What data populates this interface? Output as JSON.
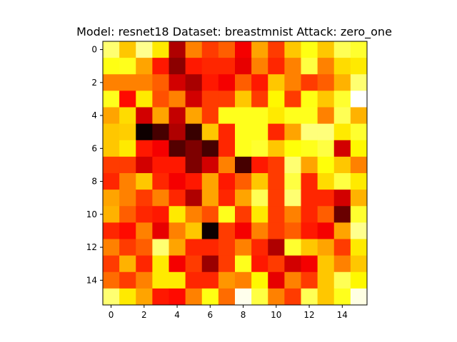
{
  "chart_data": {
    "type": "heatmap",
    "title": "Model: resnet18 Dataset: breastmnist Attack: zero_one",
    "xlabel": "",
    "ylabel": "",
    "colormap": "hot",
    "value_range": [
      0,
      1
    ],
    "xlim": [
      -0.5,
      15.5
    ],
    "ylim": [
      15.5,
      -0.5
    ],
    "x_ticks": [
      0,
      2,
      4,
      6,
      8,
      10,
      12,
      14
    ],
    "y_ticks": [
      0,
      2,
      4,
      6,
      8,
      10,
      12,
      14
    ],
    "grid": false,
    "values": [
      [
        0.85,
        0.65,
        0.88,
        0.7,
        0.25,
        0.55,
        0.45,
        0.5,
        0.35,
        0.6,
        0.45,
        0.65,
        0.75,
        0.65,
        0.82,
        0.78
      ],
      [
        0.75,
        0.76,
        0.6,
        0.4,
        0.2,
        0.4,
        0.42,
        0.42,
        0.33,
        0.55,
        0.42,
        0.55,
        0.8,
        0.55,
        0.68,
        0.7
      ],
      [
        0.55,
        0.55,
        0.55,
        0.5,
        0.3,
        0.24,
        0.4,
        0.35,
        0.5,
        0.4,
        0.65,
        0.55,
        0.45,
        0.5,
        0.62,
        0.85
      ],
      [
        0.76,
        0.38,
        0.7,
        0.48,
        0.55,
        0.3,
        0.45,
        0.45,
        0.65,
        0.45,
        0.72,
        0.45,
        0.75,
        0.65,
        0.78,
        1.0
      ],
      [
        0.6,
        0.68,
        0.3,
        0.6,
        0.28,
        0.6,
        0.45,
        0.76,
        0.76,
        0.76,
        0.7,
        0.76,
        0.76,
        0.55,
        0.82,
        0.62
      ],
      [
        0.65,
        0.66,
        0.02,
        0.1,
        0.25,
        0.08,
        0.65,
        0.42,
        0.76,
        0.76,
        0.42,
        0.6,
        0.86,
        0.86,
        0.7,
        0.78
      ],
      [
        0.65,
        0.7,
        0.4,
        0.35,
        0.12,
        0.18,
        0.1,
        0.42,
        0.76,
        0.78,
        0.65,
        0.74,
        0.76,
        0.8,
        0.3,
        0.72
      ],
      [
        0.45,
        0.45,
        0.3,
        0.4,
        0.4,
        0.18,
        0.3,
        0.55,
        0.1,
        0.4,
        0.45,
        0.85,
        0.6,
        0.74,
        0.65,
        0.55
      ],
      [
        0.42,
        0.55,
        0.65,
        0.42,
        0.35,
        0.4,
        0.6,
        0.4,
        0.5,
        0.65,
        0.45,
        0.8,
        0.42,
        0.68,
        0.8,
        0.7
      ],
      [
        0.6,
        0.55,
        0.45,
        0.55,
        0.42,
        0.25,
        0.6,
        0.42,
        0.6,
        0.82,
        0.45,
        0.85,
        0.42,
        0.42,
        0.3,
        0.62
      ],
      [
        0.62,
        0.5,
        0.42,
        0.4,
        0.7,
        0.55,
        0.48,
        0.76,
        0.45,
        0.7,
        0.45,
        0.55,
        0.42,
        0.5,
        0.15,
        0.78
      ],
      [
        0.42,
        0.38,
        0.55,
        0.33,
        0.55,
        0.65,
        0.02,
        0.45,
        0.35,
        0.55,
        0.45,
        0.5,
        0.4,
        0.35,
        0.6,
        0.88
      ],
      [
        0.55,
        0.45,
        0.5,
        0.85,
        0.6,
        0.42,
        0.42,
        0.45,
        0.55,
        0.42,
        0.25,
        0.78,
        0.65,
        0.6,
        0.45,
        0.7
      ],
      [
        0.45,
        0.62,
        0.42,
        0.7,
        0.35,
        0.45,
        0.22,
        0.45,
        0.76,
        0.4,
        0.45,
        0.3,
        0.35,
        0.65,
        0.55,
        0.65
      ],
      [
        0.52,
        0.45,
        0.55,
        0.7,
        0.7,
        0.42,
        0.42,
        0.58,
        0.55,
        0.72,
        0.33,
        0.55,
        0.45,
        0.65,
        0.82,
        0.72
      ],
      [
        0.85,
        0.7,
        0.6,
        0.4,
        0.38,
        0.55,
        0.75,
        0.52,
        0.98,
        0.8,
        0.55,
        0.45,
        0.82,
        0.65,
        0.76,
        0.97
      ]
    ]
  }
}
